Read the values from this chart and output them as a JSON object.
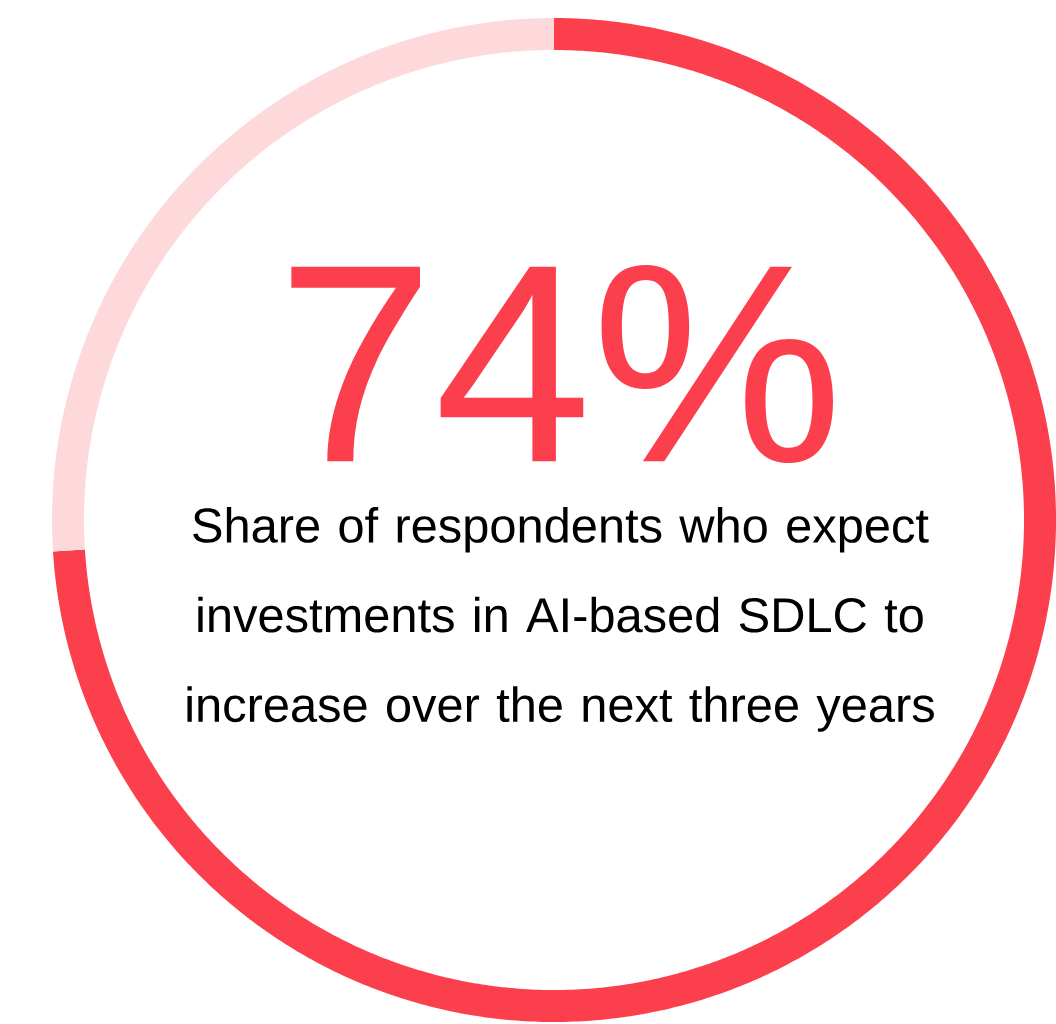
{
  "chart_data": {
    "type": "donut",
    "categories": [
      null,
      null
    ],
    "values": [
      74,
      26
    ],
    "colors": [
      "#fc3f4d",
      "#fed9dc"
    ],
    "value_labels": [
      "74%",
      null
    ],
    "subtitle": "Share of respondents who expect investments in AI-based SDLC to increase over the next three years"
  }
}
